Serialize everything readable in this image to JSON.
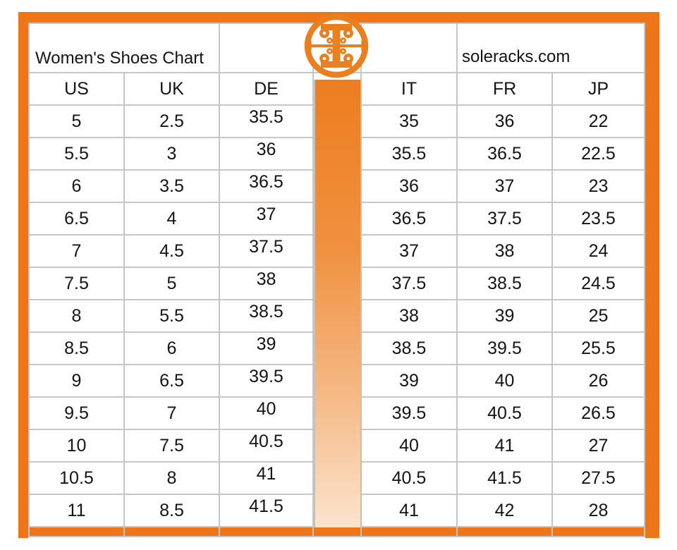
{
  "header": {
    "title": "Women's Shoes Chart",
    "website": "soleracks.com",
    "logo": "tory-burch-logo"
  },
  "colors": {
    "accent_orange": "#EF7519",
    "logo_orange": "#E8801F",
    "band_gradient_top": "#ED7D1F",
    "band_gradient_bottom": "#FBE4CC",
    "grid_gray": "#C6C6C6",
    "text": "#141414"
  },
  "chart_data": {
    "type": "table",
    "title": "Women's Shoes Chart",
    "source_label": "soleracks.com",
    "columns": [
      "US",
      "UK",
      "DE",
      "IT",
      "FR",
      "JP"
    ],
    "rows": [
      [
        "5",
        "2.5",
        "35.5",
        "35",
        "36",
        "22"
      ],
      [
        "5.5",
        "3",
        "36",
        "35.5",
        "36.5",
        "22.5"
      ],
      [
        "6",
        "3.5",
        "36.5",
        "36",
        "37",
        "23"
      ],
      [
        "6.5",
        "4",
        "37",
        "36.5",
        "37.5",
        "23.5"
      ],
      [
        "7",
        "4.5",
        "37.5",
        "37",
        "38",
        "24"
      ],
      [
        "7.5",
        "5",
        "38",
        "37.5",
        "38.5",
        "24.5"
      ],
      [
        "8",
        "5.5",
        "38.5",
        "38",
        "39",
        "25"
      ],
      [
        "8.5",
        "6",
        "39",
        "38.5",
        "39.5",
        "25.5"
      ],
      [
        "9",
        "6.5",
        "39.5",
        "39",
        "40",
        "26"
      ],
      [
        "9.5",
        "7",
        "40",
        "39.5",
        "40.5",
        "26.5"
      ],
      [
        "10",
        "7.5",
        "40.5",
        "40",
        "41",
        "27"
      ],
      [
        "10.5",
        "8",
        "41",
        "40.5",
        "41.5",
        "27.5"
      ],
      [
        "11",
        "8.5",
        "41.5",
        "41",
        "42",
        "28"
      ]
    ]
  }
}
